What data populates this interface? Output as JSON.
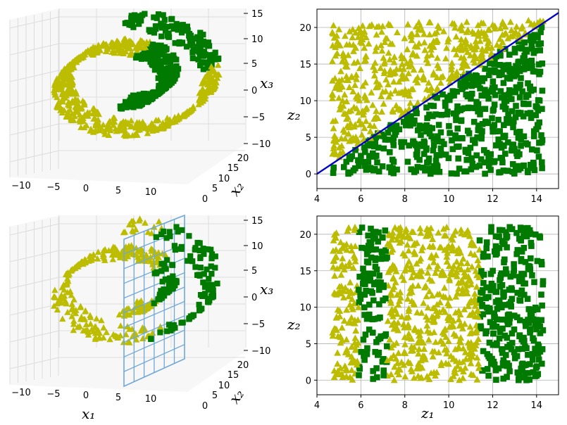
{
  "colors": {
    "class_a": "#bcbc00",
    "class_b": "#007a00",
    "boundary": "#0000cc",
    "plane": "#6fa8d8",
    "grid": "#b0b0b0"
  },
  "chart_data": [
    {
      "id": "top-left",
      "type": "scatter3d",
      "description_visible": "Swiss roll in 3D (x1, x2, x3) colored by class",
      "xlabel": "",
      "ylabel": "x₂",
      "zlabel": "x₃",
      "x_ticks": [
        "−10",
        "−5",
        "0",
        "5",
        "10"
      ],
      "y_ticks": [
        "0",
        "5",
        "10",
        "15",
        "20"
      ],
      "z_ticks": [
        "−10",
        "−5",
        "0",
        "5",
        "10",
        "15"
      ],
      "series": [
        {
          "marker": "triangle",
          "color": "#bcbc00"
        },
        {
          "marker": "square",
          "color": "#007a00"
        }
      ]
    },
    {
      "id": "top-right",
      "type": "scatter",
      "xlabel": "",
      "ylabel": "z₂",
      "xlim": [
        4,
        15
      ],
      "ylim": [
        -2,
        22.5
      ],
      "x_ticks": [
        "4",
        "6",
        "8",
        "10",
        "12",
        "14"
      ],
      "y_ticks": [
        "0",
        "5",
        "10",
        "15",
        "20"
      ],
      "rule": "square if z2 <= 2*(z1-4), else triangle",
      "boundary_line": {
        "x": [
          4,
          15
        ],
        "y": [
          0,
          22
        ]
      },
      "series": [
        {
          "marker": "triangle",
          "color": "#bcbc00"
        },
        {
          "marker": "square",
          "color": "#007a00"
        }
      ]
    },
    {
      "id": "bottom-left",
      "type": "scatter3d",
      "xlabel": "x₁",
      "ylabel": "x₂",
      "zlabel": "x₃",
      "x_ticks": [
        "−10",
        "−5",
        "0",
        "5",
        "10"
      ],
      "y_ticks": [
        "0",
        "5",
        "10",
        "15",
        "20"
      ],
      "z_ticks": [
        "−10",
        "−5",
        "0",
        "5",
        "10",
        "15"
      ],
      "decision_plane": "x1 = 5",
      "series": [
        {
          "marker": "triangle",
          "color": "#bcbc00"
        },
        {
          "marker": "square",
          "color": "#007a00"
        }
      ]
    },
    {
      "id": "bottom-right",
      "type": "scatter",
      "xlabel": "z₁",
      "ylabel": "z₂",
      "xlim": [
        4,
        15
      ],
      "ylim": [
        -2,
        22.5
      ],
      "x_ticks": [
        "4",
        "6",
        "8",
        "10",
        "12",
        "14"
      ],
      "y_ticks": [
        "0",
        "5",
        "10",
        "15",
        "20"
      ],
      "rule": "square if 5.9<z1<7.2 or z1>11.4, else triangle",
      "series": [
        {
          "marker": "triangle",
          "color": "#bcbc00"
        },
        {
          "marker": "square",
          "color": "#007a00"
        }
      ]
    }
  ]
}
